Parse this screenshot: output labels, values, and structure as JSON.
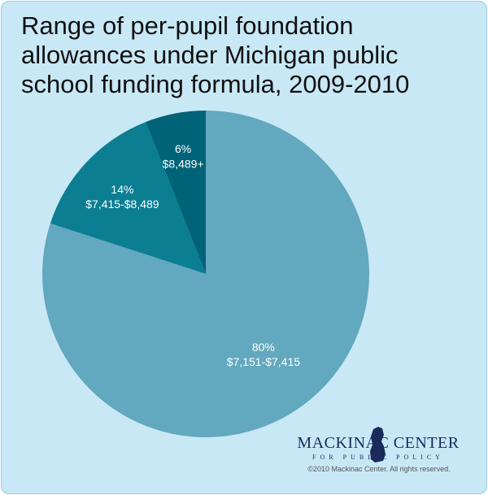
{
  "chart_data": {
    "type": "pie",
    "title": "Range of per-pupil foundation allowances under Michigan public school funding formula, 2009-2010",
    "categories": [
      "$7,151-$7,415",
      "$7,415-$8,489",
      "$8,489+"
    ],
    "values": [
      80,
      14,
      6
    ],
    "value_labels": [
      "80%",
      "14%",
      "6%"
    ],
    "colors": [
      "#62a8bf",
      "#0b7e92",
      "#006378"
    ]
  },
  "footer": {
    "brand": "MACKINAC CENTER",
    "tagline": "FOR PUBLIC POLICY",
    "copyright": "©2010 Mackinac Center. All rights reserved."
  }
}
